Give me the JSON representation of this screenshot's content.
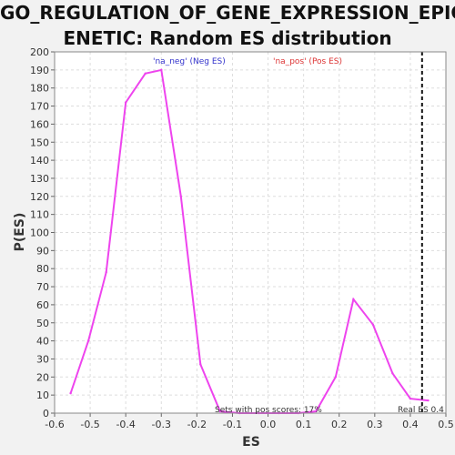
{
  "chart_data": {
    "type": "line",
    "title_lines": [
      "GO_REGULATION_OF_GENE_EXPRESSION_EPIG",
      "ENETIC: Random ES distribution"
    ],
    "xlabel": "ES",
    "ylabel": "P(ES)",
    "xlim": [
      -0.6,
      0.5
    ],
    "ylim": [
      0,
      200
    ],
    "x_ticks": [
      "-0.6",
      "-0.5",
      "-0.4",
      "-0.3",
      "-0.2",
      "-0.1",
      "0.0",
      "0.1",
      "0.2",
      "0.3",
      "0.4",
      "0.5"
    ],
    "y_ticks": [
      "0",
      "10",
      "20",
      "30",
      "40",
      "50",
      "60",
      "70",
      "80",
      "90",
      "100",
      "110",
      "120",
      "130",
      "140",
      "150",
      "160",
      "170",
      "180",
      "190",
      "200"
    ],
    "grid": true,
    "series": [
      {
        "color": "#ee44ee",
        "points": [
          [
            -0.555,
            11
          ],
          [
            -0.505,
            40
          ],
          [
            -0.455,
            78
          ],
          [
            -0.4,
            172
          ],
          [
            -0.345,
            188
          ],
          [
            -0.3,
            190
          ],
          [
            -0.245,
            120
          ],
          [
            -0.19,
            27
          ],
          [
            -0.135,
            1
          ],
          [
            -0.08,
            0
          ],
          [
            -0.025,
            0
          ],
          [
            0.03,
            0
          ],
          [
            0.085,
            0
          ],
          [
            0.135,
            1
          ],
          [
            0.19,
            20
          ],
          [
            0.24,
            63
          ],
          [
            0.295,
            49
          ],
          [
            0.35,
            22
          ],
          [
            0.4,
            8
          ],
          [
            0.45,
            7
          ]
        ]
      }
    ],
    "legend": [
      {
        "label": "'na_neg' (Neg ES)",
        "color": "#3333cc"
      },
      {
        "label": "'na_pos' (Pos ES)",
        "color": "#dd3333"
      }
    ],
    "real_es": {
      "value": 0.433,
      "label": "Real ES 0.4"
    },
    "annotation": "Sets with pos scores: 17%"
  }
}
